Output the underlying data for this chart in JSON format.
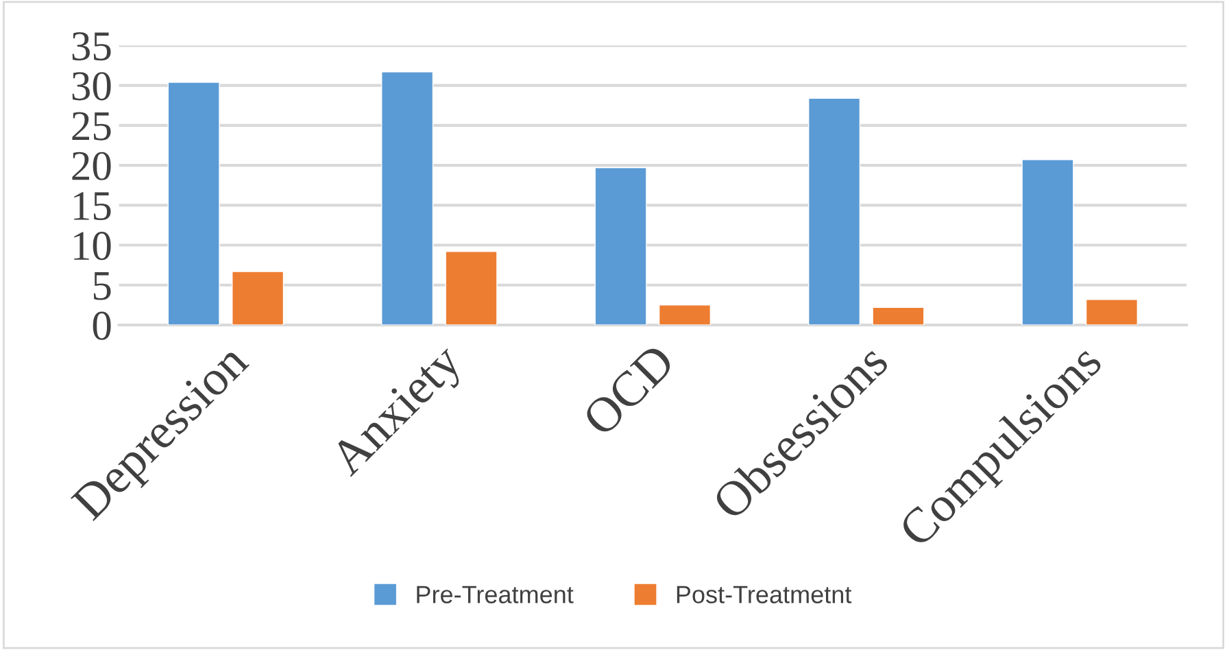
{
  "chart_data": {
    "type": "bar",
    "categories": [
      "Depression",
      "Anxiety",
      "OCD",
      "Obsessions",
      "Compulsions"
    ],
    "series": [
      {
        "name": "Pre-Treatment",
        "color": "#5b9bd5",
        "values": [
          30.4,
          31.7,
          19.7,
          28.4,
          20.7
        ]
      },
      {
        "name": "Post-Treatmetnt",
        "color": "#ed7d31",
        "values": [
          6.7,
          9.2,
          2.5,
          2.2,
          3.2
        ]
      }
    ],
    "ylim": [
      0,
      35
    ],
    "yticks": [
      0,
      5,
      10,
      15,
      20,
      25,
      30,
      35
    ],
    "grid": "y",
    "legend": "bottom"
  }
}
